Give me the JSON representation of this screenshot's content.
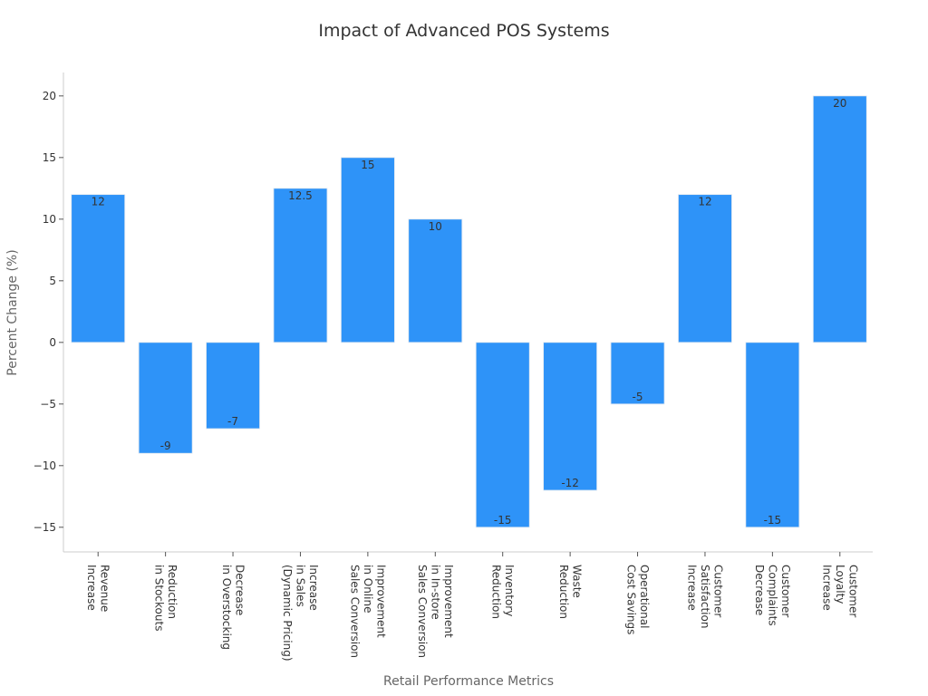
{
  "chart_data": {
    "type": "bar",
    "title": "Impact of Advanced POS Systems",
    "xlabel": "Retail Performance Metrics",
    "ylabel": "Percent Change (%)",
    "categories": [
      [
        "Revenue",
        "Increase"
      ],
      [
        "Reduction",
        "in Stockouts"
      ],
      [
        "Decrease",
        "in Overstocking"
      ],
      [
        "Increase",
        "in Sales",
        "(Dynamic Pricing)"
      ],
      [
        "Improvement",
        "in Online",
        "Sales Conversion"
      ],
      [
        "Improvement",
        "in In-store",
        "Sales Conversion"
      ],
      [
        "Inventory",
        "Reduction"
      ],
      [
        "Waste",
        "Reduction"
      ],
      [
        "Operational",
        "Cost Savings"
      ],
      [
        "Customer",
        "Satisfaction",
        "Increase"
      ],
      [
        "Customer",
        "Complaints",
        "Decrease"
      ],
      [
        "Customer",
        "Loyalty",
        "Increase"
      ]
    ],
    "values": [
      12,
      -9,
      -7,
      12.5,
      15,
      10,
      -15,
      -12,
      -5,
      12,
      -15,
      20
    ],
    "data_labels": [
      "12",
      "-9",
      "-7",
      "12.5",
      "15",
      "10",
      "-15",
      "-12",
      "-5",
      "12",
      "-15",
      "20"
    ],
    "yticks": [
      -15,
      -10,
      -5,
      0,
      5,
      10,
      15,
      20
    ],
    "ytick_labels": [
      "−15",
      "−10",
      "−5",
      "0",
      "5",
      "10",
      "15",
      "20"
    ],
    "ylim": [
      -17,
      21.9
    ],
    "grid": false,
    "bar_color": "#2e93f8"
  }
}
